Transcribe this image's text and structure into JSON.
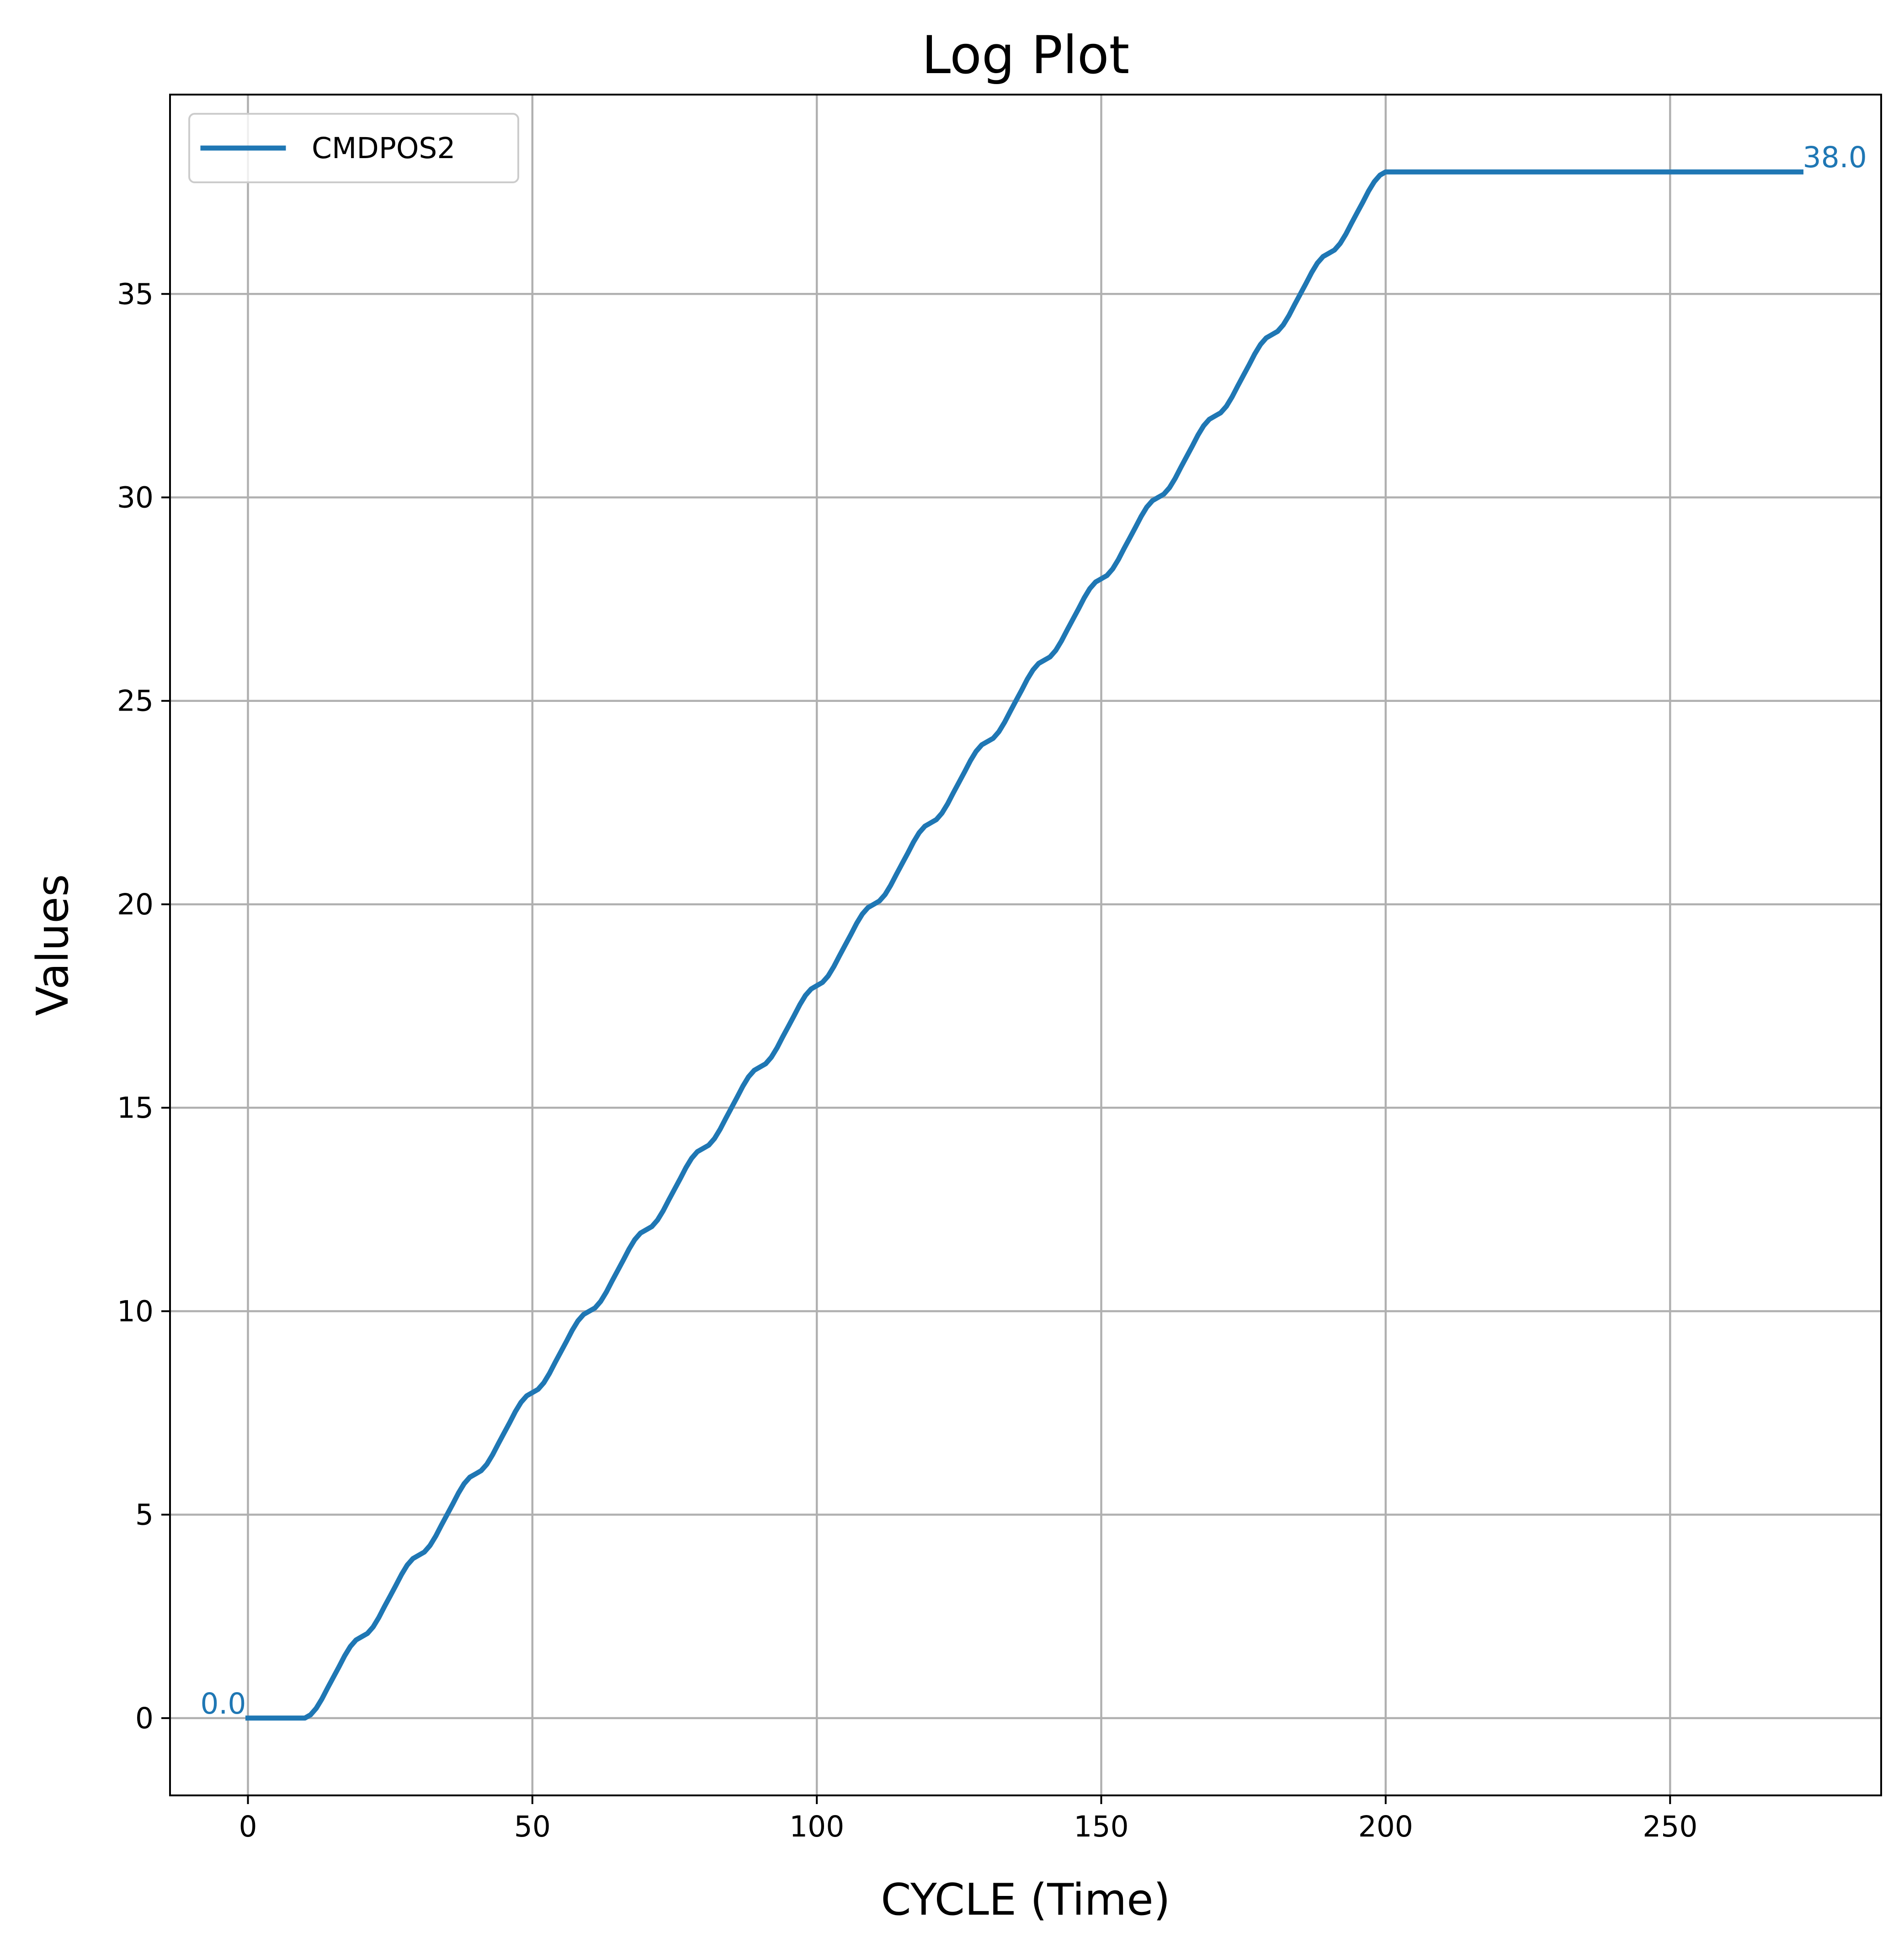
{
  "chart_data": {
    "type": "line",
    "title": "Log Plot",
    "xlabel": "CYCLE (Time)",
    "ylabel": "Values",
    "xlim": [
      -13.7,
      287.1
    ],
    "ylim": [
      -1.9,
      39.9
    ],
    "xticks": [
      0,
      50,
      100,
      150,
      200,
      250
    ],
    "yticks": [
      0,
      5,
      10,
      15,
      20,
      25,
      30,
      35
    ],
    "grid": true,
    "legend_position": "top-left",
    "series": [
      {
        "name": "CMDPOS2",
        "color": "#1f77b4",
        "x": [
          0,
          10,
          11,
          12,
          13,
          14,
          15,
          16,
          17,
          18,
          19,
          20,
          21,
          22,
          23,
          24,
          25,
          26,
          27,
          28,
          29,
          30,
          31,
          32,
          33,
          34,
          35,
          36,
          37,
          38,
          39,
          40,
          41,
          42,
          43,
          44,
          45,
          46,
          47,
          48,
          49,
          50,
          51,
          52,
          53,
          54,
          55,
          56,
          57,
          58,
          59,
          60,
          61,
          62,
          63,
          64,
          65,
          66,
          67,
          68,
          69,
          70,
          71,
          72,
          73,
          74,
          75,
          76,
          77,
          78,
          79,
          80,
          81,
          82,
          83,
          84,
          85,
          86,
          87,
          88,
          89,
          90,
          91,
          92,
          93,
          94,
          95,
          96,
          97,
          98,
          99,
          100,
          101,
          102,
          103,
          104,
          105,
          106,
          107,
          108,
          109,
          110,
          111,
          112,
          113,
          114,
          115,
          116,
          117,
          118,
          119,
          120,
          121,
          122,
          123,
          124,
          125,
          126,
          127,
          128,
          129,
          130,
          131,
          132,
          133,
          134,
          135,
          136,
          137,
          138,
          139,
          140,
          141,
          142,
          143,
          144,
          145,
          146,
          147,
          148,
          149,
          150,
          151,
          152,
          153,
          154,
          155,
          156,
          157,
          158,
          159,
          160,
          161,
          162,
          163,
          164,
          165,
          166,
          167,
          168,
          169,
          170,
          171,
          172,
          173,
          174,
          175,
          176,
          177,
          178,
          179,
          180,
          181,
          182,
          183,
          184,
          185,
          186,
          187,
          188,
          189,
          190,
          191,
          192,
          193,
          194,
          195,
          196,
          197,
          198,
          199,
          200,
          273
        ],
        "y": [
          0,
          0,
          0.08,
          0.24,
          0.47,
          0.74,
          1.0,
          1.26,
          1.53,
          1.76,
          1.92,
          2.0,
          2.08,
          2.24,
          2.47,
          2.74,
          3.0,
          3.26,
          3.53,
          3.76,
          3.92,
          4.0,
          4.08,
          4.24,
          4.47,
          4.74,
          5.0,
          5.26,
          5.53,
          5.76,
          5.92,
          6.0,
          6.08,
          6.24,
          6.47,
          6.74,
          7.0,
          7.26,
          7.53,
          7.76,
          7.92,
          8.0,
          8.08,
          8.24,
          8.47,
          8.74,
          9.0,
          9.26,
          9.53,
          9.76,
          9.92,
          10.0,
          10.08,
          10.24,
          10.47,
          10.74,
          11.0,
          11.26,
          11.53,
          11.76,
          11.92,
          12.0,
          12.08,
          12.24,
          12.47,
          12.74,
          13.0,
          13.26,
          13.53,
          13.76,
          13.92,
          14.0,
          14.08,
          14.24,
          14.47,
          14.74,
          15.0,
          15.26,
          15.53,
          15.76,
          15.92,
          16.0,
          16.08,
          16.24,
          16.47,
          16.74,
          17.0,
          17.26,
          17.53,
          17.76,
          17.92,
          18.0,
          18.08,
          18.24,
          18.47,
          18.74,
          19.0,
          19.26,
          19.53,
          19.76,
          19.92,
          20.0,
          20.08,
          20.24,
          20.47,
          20.74,
          21.0,
          21.26,
          21.53,
          21.76,
          21.92,
          22.0,
          22.08,
          22.24,
          22.47,
          22.74,
          23.0,
          23.26,
          23.53,
          23.76,
          23.92,
          24.0,
          24.08,
          24.24,
          24.47,
          24.74,
          25.0,
          25.26,
          25.53,
          25.76,
          25.92,
          26.0,
          26.08,
          26.24,
          26.47,
          26.74,
          27.0,
          27.26,
          27.53,
          27.76,
          27.92,
          28.0,
          28.08,
          28.24,
          28.47,
          28.74,
          29.0,
          29.26,
          29.53,
          29.76,
          29.92,
          30.0,
          30.08,
          30.24,
          30.47,
          30.74,
          31.0,
          31.26,
          31.53,
          31.76,
          31.92,
          32.0,
          32.08,
          32.24,
          32.47,
          32.74,
          33.0,
          33.26,
          33.53,
          33.76,
          33.92,
          34.0,
          34.08,
          34.24,
          34.47,
          34.74,
          35.0,
          35.26,
          35.53,
          35.76,
          35.92,
          36.0,
          36.08,
          36.24,
          36.47,
          36.74,
          37.0,
          37.26,
          37.53,
          37.76,
          37.92,
          38.0,
          38.0
        ]
      }
    ],
    "annotations": [
      {
        "text": "0.0",
        "x": 0,
        "y": 0,
        "anchor": "end"
      },
      {
        "text": "38.0",
        "x": 273,
        "y": 38,
        "anchor": "start"
      }
    ]
  }
}
